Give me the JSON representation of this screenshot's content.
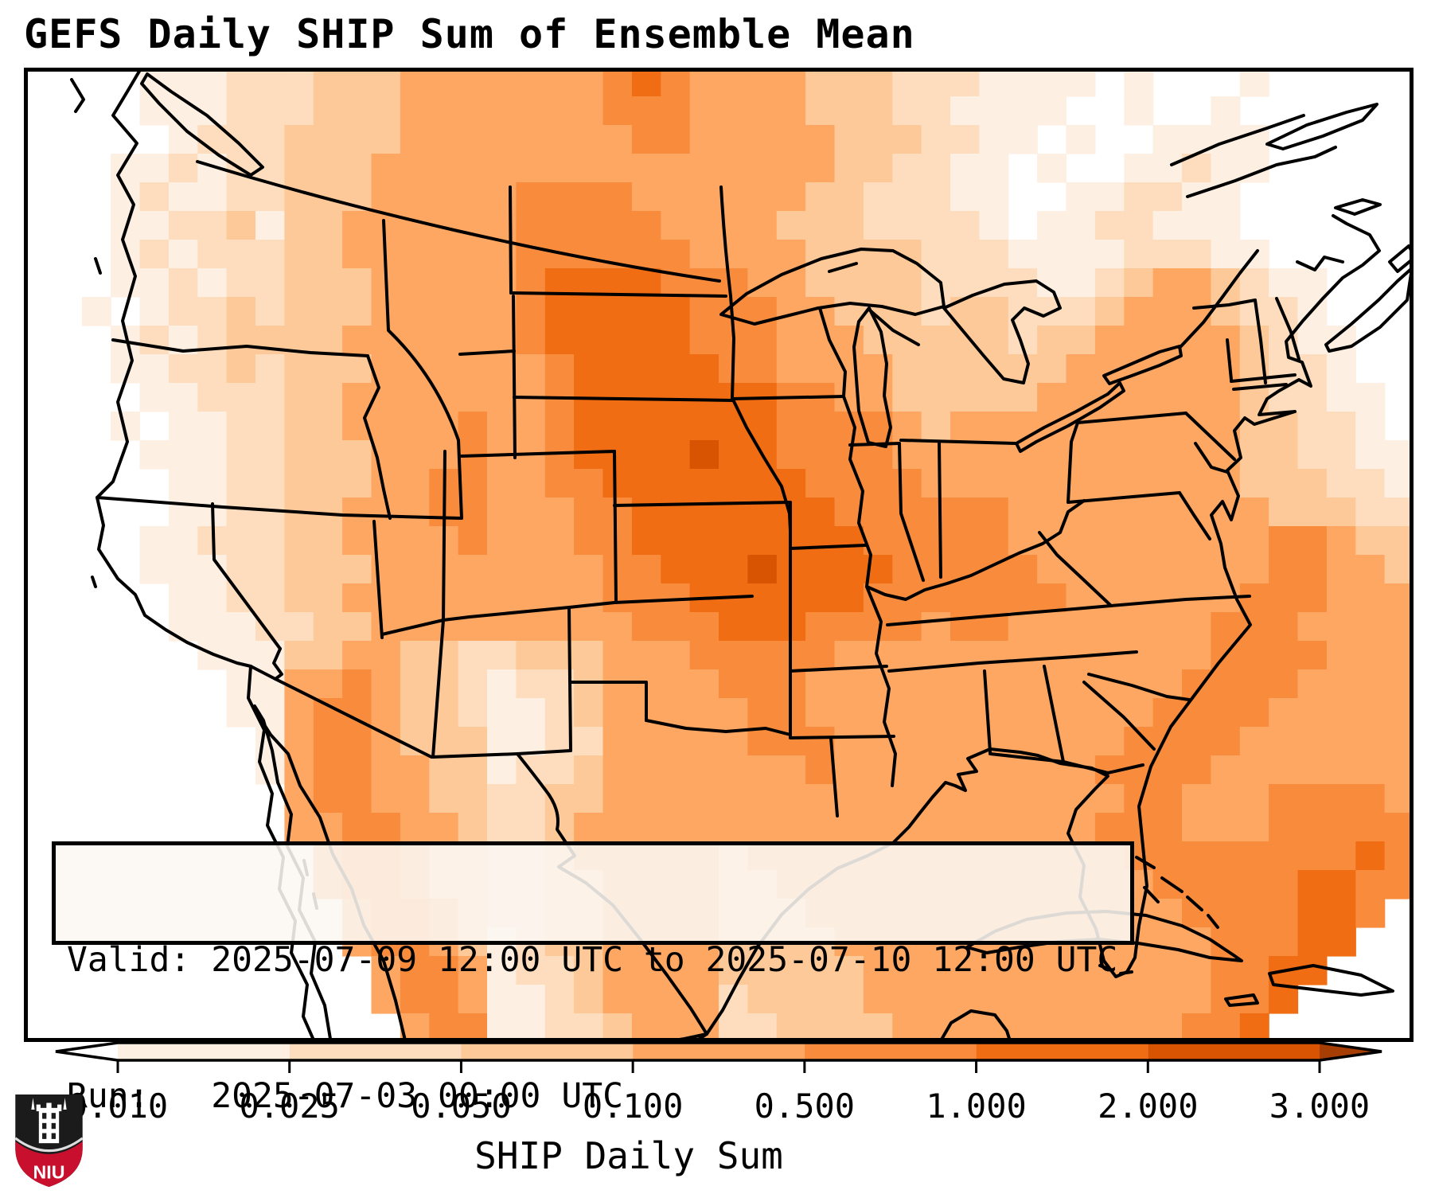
{
  "title": "GEFS Daily SHIP Sum of Ensemble Mean",
  "info_box": {
    "valid_line": "Valid: 2025-07-09 12:00 UTC to 2025-07-10 12:00 UTC",
    "run_line": "Run:   2025-07-03 00:00 UTC"
  },
  "colorbar": {
    "label": "SHIP Daily Sum",
    "tick_labels": [
      "0.010",
      "0.025",
      "0.050",
      "0.100",
      "0.500",
      "1.000",
      "2.000",
      "3.000"
    ],
    "tick_values": [
      0.01,
      0.025,
      0.05,
      0.1,
      0.5,
      1.0,
      2.0,
      3.0
    ],
    "segment_colors": [
      "#feefe3",
      "#fdddbe",
      "#fdc999",
      "#fda762",
      "#f98c3c",
      "#f06d13",
      "#d85403"
    ],
    "under_arrow_color": "#ffffff",
    "over_arrow_color": "#a63e03",
    "outline_color": "#000000"
  },
  "logo": {
    "text": "NIU",
    "shield_color": "#1b1b1b",
    "band_color": "#c8102e",
    "text_color": "#ffffff"
  },
  "chart_data": {
    "type": "heatmap",
    "title": "GEFS Daily SHIP Sum of Ensemble Mean",
    "value_label": "SHIP Daily Sum",
    "valid_period": "2025-07-09 12:00 UTC to 2025-07-10 12:00 UTC",
    "model_run": "2025-07-03 00:00 UTC",
    "levels": [
      0.01,
      0.025,
      0.05,
      0.1,
      0.5,
      1.0,
      2.0,
      3.0
    ],
    "legend_position": "bottom",
    "region": "CONUS and surroundings",
    "maxima_note": "highest SHIP daily sums (1-3+) over SD, NE, IA, MO; secondary band along Gulf Stream and NW Mexico coast"
  },
  "heatmap": {
    "cols": 48,
    "rows": 34,
    "palette": [
      "#ffffff",
      "#feefe3",
      "#fdddbe",
      "#fdc999",
      "#fda762",
      "#f98c3c",
      "#f06d13",
      "#d85403"
    ],
    "grid": [
      "000011122233344444445654444333222111101000100000",
      "000011122233344444445554444333221111001001000000",
      "000001222333344444444554444433322110100111100000",
      "000112122333444444444444444433221101001121100000",
      "000121122333444445555444444332221100112211000000",
      "000112231334444445555544443332222101122111000000",
      "000121222334444445555554444333322211112221100000",
      "000112122333444445666655544333322221123443211000",
      "001012232333444445666665554433323322234443221000",
      "000121233334444445666665554443333323344444321100",
      "000112232333444444566666554444333333444444322100",
      "000011222334444444566666665544333334444444322110",
      "000101122334444544566666665555434444444444332210",
      "000011122333444544566667665555444444444444332211",
      "000001122333445544556666666555544444444444333221",
      "000001122334445544455666666655555544444444433322",
      "000011222334444544455666666665555544444444455433",
      "000011122333444444445566676666555554444444455443",
      "000001122334444444445556666665555555444444555444",
      "000001112233444444444555666555545544444445554444",
      "000000111334433223334445555544444444444445555444",
      "000000011445433212234444555444444444444455554444",
      "000000011455433211234444455444444444444555544444",
      "000000001455433311224444455544444444445555444444",
      "000000001455443312234444444544444444455554444444",
      "000000000455443322334444444444444444445544455554",
      "000000000445544322344444444444444444455544455555",
      "000000000045543322344444344444444444445555555565",
      "000000000045543322334444334444444444444555556655",
      "000000000004554322334444333444444444444455556650",
      "000000000004554312334444333344444444444445556600",
      "000000000000455412234444333334444444444445566000",
      "000000000000455411234444233334444444444445560000",
      "000000000000045511223444223333444444444455600000"
    ]
  }
}
